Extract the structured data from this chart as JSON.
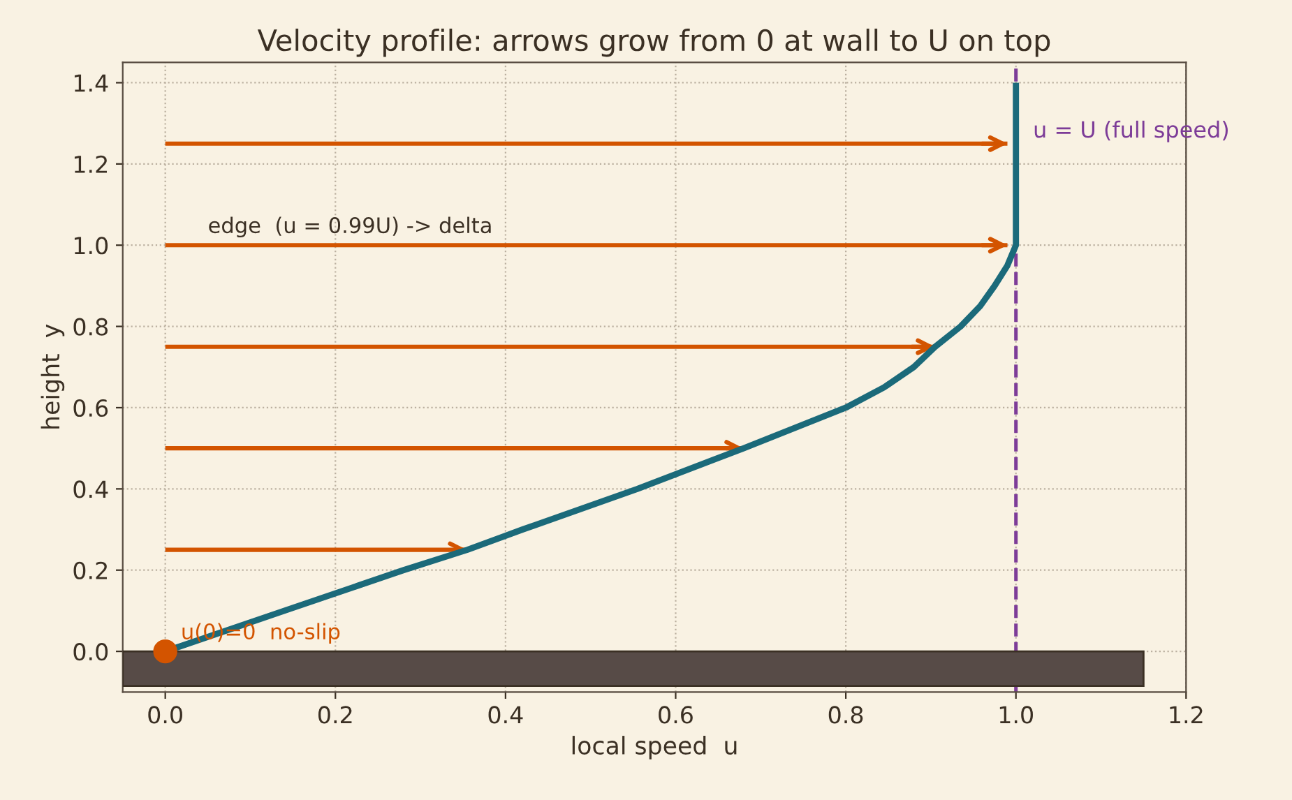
{
  "chart_data": {
    "type": "line",
    "title": "Velocity profile: arrows grow from 0 at wall to U on top",
    "xlabel": "local speed  u",
    "ylabel": "height  y",
    "series": [
      {
        "color": "#d35400",
        "x": [
          0,
          0.355
        ],
        "values": [
          0.25,
          0.25
        ]
      },
      {
        "color": "#d35400",
        "x": [
          0,
          0.68
        ],
        "values": [
          0.5,
          0.5
        ]
      },
      {
        "color": "#d35400",
        "x": [
          0,
          0.905
        ],
        "values": [
          0.75,
          0.75
        ]
      },
      {
        "color": "#d35400",
        "x": [
          0,
          0.99
        ],
        "values": [
          1.0,
          1.0
        ]
      },
      {
        "color": "#d35400",
        "x": [
          0,
          0.99
        ],
        "values": [
          1.25,
          1.25
        ]
      },
      {
        "color": "#1b6a7a",
        "x": [
          0,
          0.14,
          0.28,
          0.355,
          0.42,
          0.555,
          0.68,
          0.8,
          0.845,
          0.88,
          0.905,
          0.935,
          0.958,
          0.975,
          0.99,
          1.0,
          1.0
        ],
        "values": [
          0,
          0.1,
          0.2,
          0.25,
          0.3,
          0.4,
          0.5,
          0.6,
          0.65,
          0.7,
          0.75,
          0.8,
          0.85,
          0.9,
          0.95,
          1.0,
          1.4
        ]
      },
      {
        "type": "scatter",
        "color": "#d35400",
        "x": [
          0
        ],
        "values": [
          0
        ]
      }
    ],
    "ref_lines": [
      {
        "axis": "x",
        "value": 1.0,
        "label": "u = U (full speed)",
        "color": "#7d3c98",
        "line_style": "dashed"
      }
    ],
    "annotations": [
      {
        "text": "u(0)=0  no-slip",
        "x": 0,
        "y": 0
      },
      "edge  (u = 0.99U) -> delta"
    ],
    "xlim": [
      -0.05,
      1.2
    ],
    "ylim": [
      -0.1,
      1.45
    ],
    "xticks": [
      {
        "value": 0,
        "label": "0.0"
      },
      {
        "value": 0.2,
        "label": "0.2"
      },
      {
        "value": 0.4,
        "label": "0.4"
      },
      {
        "value": 0.6,
        "label": "0.6"
      },
      {
        "value": 0.8,
        "label": "0.8"
      },
      {
        "value": 1.0,
        "label": "1.0"
      },
      {
        "value": 1.2,
        "label": "1.2"
      }
    ],
    "yticks": [
      {
        "value": 0,
        "label": "0.0"
      },
      {
        "value": 0.2,
        "label": "0.2"
      },
      {
        "value": 0.4,
        "label": "0.4"
      },
      {
        "value": 0.6,
        "label": "0.6"
      },
      {
        "value": 0.8,
        "label": "0.8"
      },
      {
        "value": 1.0,
        "label": "1.0"
      },
      {
        "value": 1.2,
        "label": "1.2"
      },
      {
        "value": 1.4,
        "label": "1.4"
      }
    ],
    "grid": true,
    "legend": false
  }
}
